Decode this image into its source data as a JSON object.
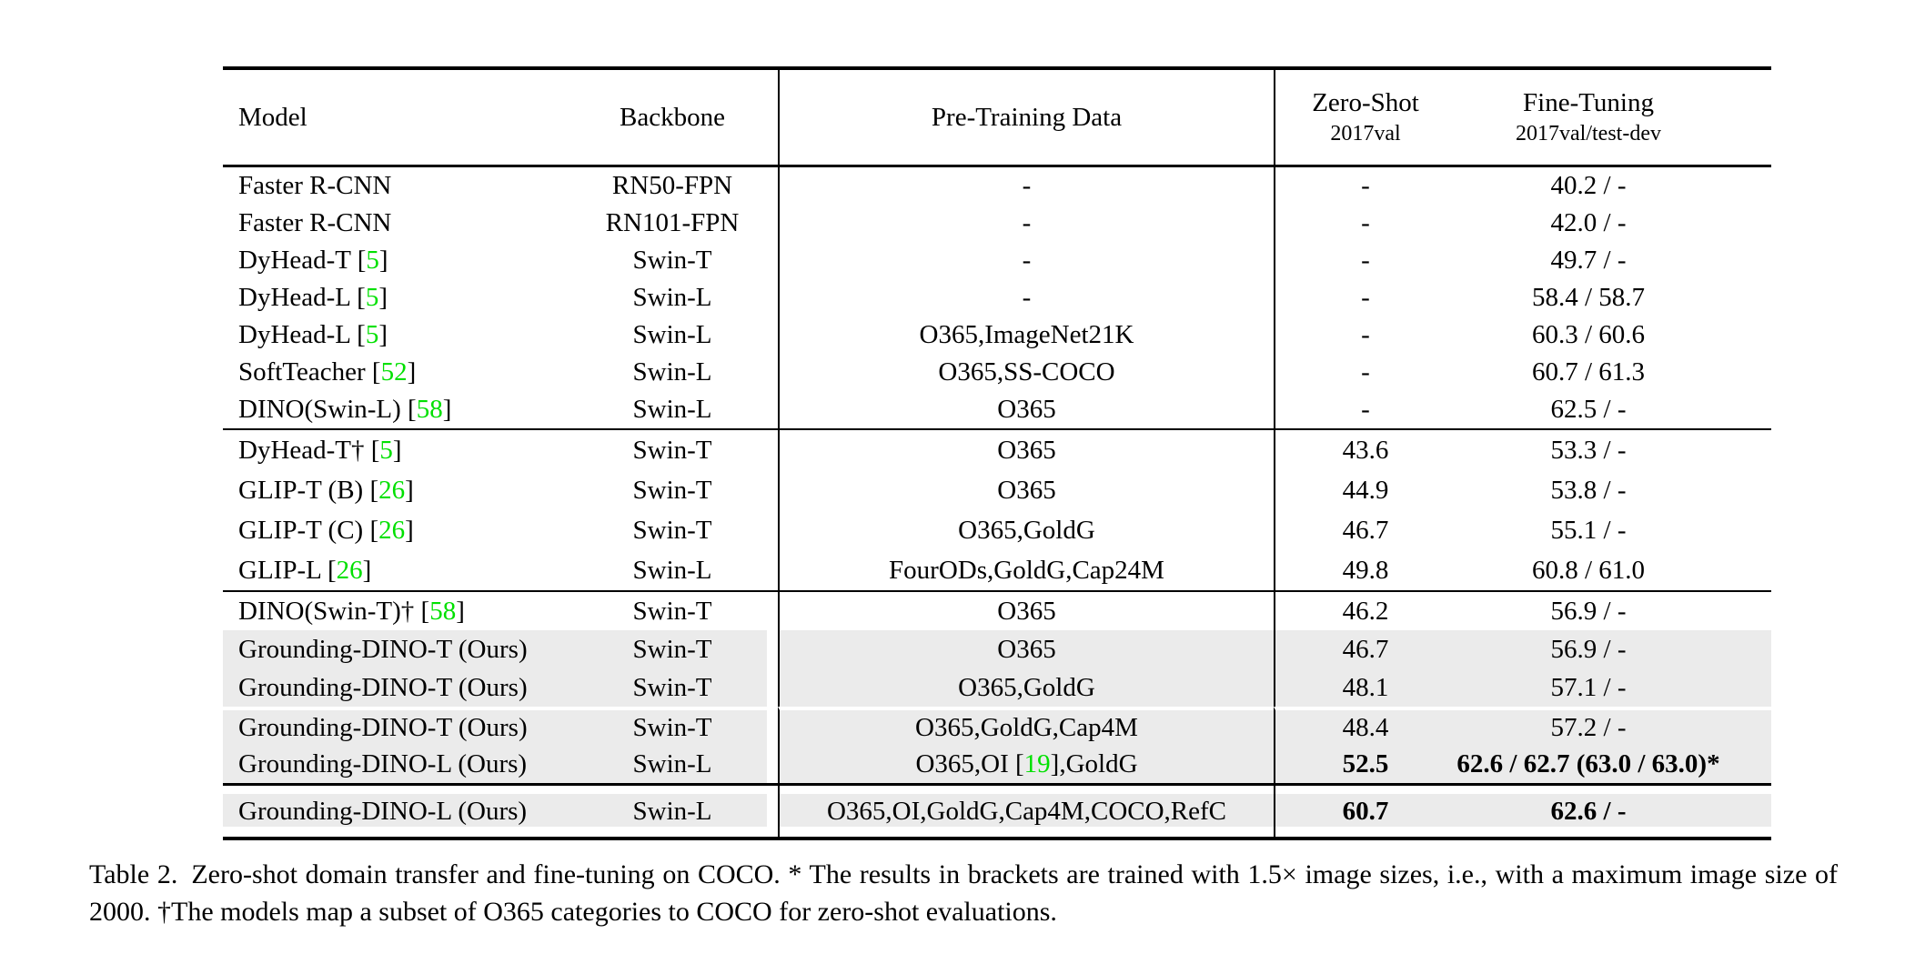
{
  "colors": {
    "citation_green": "#00e000",
    "row_shade": "#ebebeb",
    "text": "#000000",
    "background": "#ffffff"
  },
  "table": {
    "headers": {
      "model": "Model",
      "backbone": "Backbone",
      "pretrain": "Pre-Training Data",
      "zeroshot_line1": "Zero-Shot",
      "zeroshot_line2": "2017val",
      "finetune_line1": "Fine-Tuning",
      "finetune_line2": "2017val/test-dev"
    },
    "sections": [
      {
        "rows": [
          {
            "model": [
              {
                "t": "Faster R-CNN"
              }
            ],
            "backbone": "RN50-FPN",
            "pretrain": [
              {
                "t": "-"
              }
            ],
            "zeroshot": "-",
            "finetune": "40.2 / -"
          },
          {
            "model": [
              {
                "t": "Faster R-CNN"
              }
            ],
            "backbone": "RN101-FPN",
            "pretrain": [
              {
                "t": "-"
              }
            ],
            "zeroshot": "-",
            "finetune": "42.0 / -"
          },
          {
            "model": [
              {
                "t": "DyHead-T ["
              },
              {
                "t": "5",
                "green": true
              },
              {
                "t": "]"
              }
            ],
            "backbone": "Swin-T",
            "pretrain": [
              {
                "t": "-"
              }
            ],
            "zeroshot": "-",
            "finetune": "49.7 / -"
          },
          {
            "model": [
              {
                "t": "DyHead-L ["
              },
              {
                "t": "5",
                "green": true
              },
              {
                "t": "]"
              }
            ],
            "backbone": "Swin-L",
            "pretrain": [
              {
                "t": "-"
              }
            ],
            "zeroshot": "-",
            "finetune": "58.4 / 58.7"
          },
          {
            "model": [
              {
                "t": "DyHead-L ["
              },
              {
                "t": "5",
                "green": true
              },
              {
                "t": "]"
              }
            ],
            "backbone": "Swin-L",
            "pretrain": [
              {
                "t": "O365,ImageNet21K"
              }
            ],
            "zeroshot": "-",
            "finetune": "60.3 / 60.6"
          },
          {
            "model": [
              {
                "t": "SoftTeacher ["
              },
              {
                "t": "52",
                "green": true
              },
              {
                "t": "]"
              }
            ],
            "backbone": "Swin-L",
            "pretrain": [
              {
                "t": "O365,SS-COCO"
              }
            ],
            "zeroshot": "-",
            "finetune": "60.7 / 61.3"
          },
          {
            "model": [
              {
                "t": "DINO(Swin-L) ["
              },
              {
                "t": "58",
                "green": true
              },
              {
                "t": "]"
              }
            ],
            "backbone": "Swin-L",
            "pretrain": [
              {
                "t": "O365"
              }
            ],
            "zeroshot": "-",
            "finetune": "62.5 / -"
          }
        ]
      },
      {
        "rows": [
          {
            "model": [
              {
                "t": "DyHead-T† ["
              },
              {
                "t": "5",
                "green": true
              },
              {
                "t": "]"
              }
            ],
            "backbone": "Swin-T",
            "pretrain": [
              {
                "t": "O365"
              }
            ],
            "zeroshot": "43.6",
            "finetune": "53.3 / -"
          },
          {
            "model": [
              {
                "t": "GLIP-T (B) ["
              },
              {
                "t": "26",
                "green": true
              },
              {
                "t": "]"
              }
            ],
            "backbone": "Swin-T",
            "pretrain": [
              {
                "t": "O365"
              }
            ],
            "zeroshot": "44.9",
            "finetune": "53.8 / -"
          },
          {
            "model": [
              {
                "t": "GLIP-T (C) ["
              },
              {
                "t": "26",
                "green": true
              },
              {
                "t": "]"
              }
            ],
            "backbone": "Swin-T",
            "pretrain": [
              {
                "t": "O365,GoldG"
              }
            ],
            "zeroshot": "46.7",
            "finetune": "55.1 / -"
          },
          {
            "model": [
              {
                "t": "GLIP-L ["
              },
              {
                "t": "26",
                "green": true
              },
              {
                "t": "]"
              }
            ],
            "backbone": "Swin-L",
            "pretrain": [
              {
                "t": "FourODs,GoldG,Cap24M"
              }
            ],
            "zeroshot": "49.8",
            "finetune": "60.8 / 61.0"
          }
        ]
      },
      {
        "rows": [
          {
            "model": [
              {
                "t": "DINO(Swin-T)† ["
              },
              {
                "t": "58",
                "green": true
              },
              {
                "t": "]"
              }
            ],
            "backbone": "Swin-T",
            "pretrain": [
              {
                "t": "O365"
              }
            ],
            "zeroshot": "46.2",
            "finetune": "56.9 / -"
          },
          {
            "model": [
              {
                "t": "Grounding-DINO-T (Ours)"
              }
            ],
            "backbone": "Swin-T",
            "pretrain": [
              {
                "t": "O365"
              }
            ],
            "zeroshot": "46.7",
            "finetune": "56.9 / -",
            "shaded": true
          },
          {
            "model": [
              {
                "t": "Grounding-DINO-T (Ours)"
              }
            ],
            "backbone": "Swin-T",
            "pretrain": [
              {
                "t": "O365,GoldG"
              }
            ],
            "zeroshot": "48.1",
            "finetune": "57.1 / -",
            "shaded": true
          },
          {
            "model": [
              {
                "t": "Grounding-DINO-T (Ours)"
              }
            ],
            "backbone": "Swin-T",
            "pretrain": [
              {
                "t": "O365,GoldG,Cap4M"
              }
            ],
            "zeroshot": "48.4",
            "finetune": "57.2 / -",
            "shaded": true,
            "gap_above": true
          },
          {
            "model": [
              {
                "t": "Grounding-DINO-L (Ours)"
              }
            ],
            "backbone": "Swin-L",
            "pretrain": [
              {
                "t": "O365,OI ["
              },
              {
                "t": "19",
                "green": true
              },
              {
                "t": "],GoldG"
              }
            ],
            "zeroshot": "52.5",
            "finetune": "62.6 / 62.7 (63.0 / 63.0)*",
            "shaded": true,
            "bold": true
          }
        ]
      },
      {
        "rows": [
          {
            "model": [
              {
                "t": "Grounding-DINO-L (Ours)"
              }
            ],
            "backbone": "Swin-L",
            "pretrain": [
              {
                "t": "O365,OI,GoldG,Cap4M,COCO,RefC"
              }
            ],
            "zeroshot": "60.7",
            "finetune": "62.6 / -",
            "shaded": true,
            "bold": true
          }
        ]
      }
    ]
  },
  "caption": {
    "text": "Table 2. Zero-shot domain transfer and fine-tuning on COCO. * The results in brackets are trained with 1.5× image sizes, i.e., with a maximum image size of 2000. †The models map a subset of O365 categories to COCO for zero-shot evaluations."
  }
}
